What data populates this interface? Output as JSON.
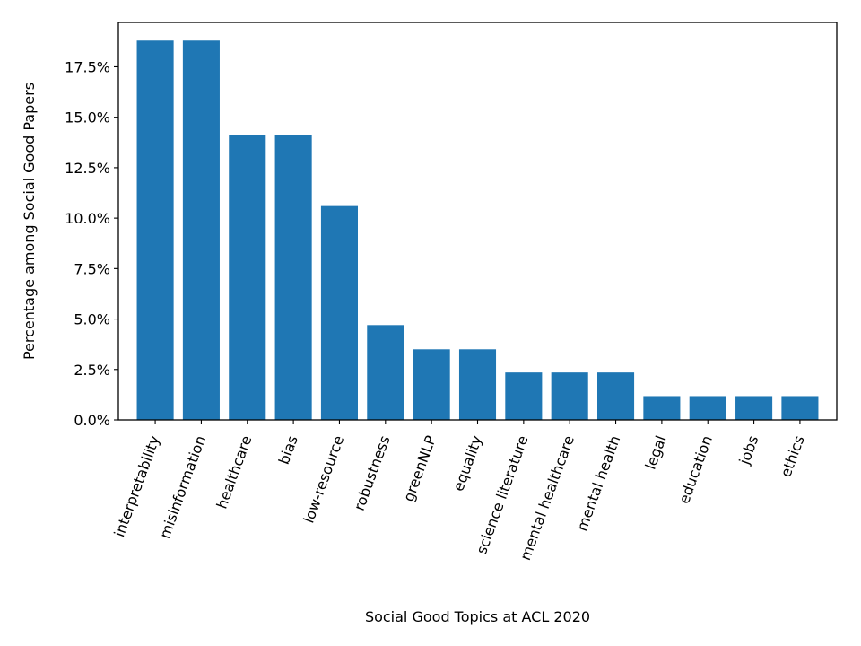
{
  "chart_data": {
    "type": "bar",
    "categories": [
      "interpretability",
      "misinformation",
      "healthcare",
      "bias",
      "low-resource",
      "robustness",
      "greenNLP",
      "equality",
      "science literature",
      "mental healthcare",
      "mental health",
      "legal",
      "education",
      "jobs",
      "ethics"
    ],
    "values": [
      18.8,
      18.8,
      14.1,
      14.1,
      10.6,
      4.7,
      3.5,
      3.5,
      2.35,
      2.35,
      2.35,
      1.18,
      1.18,
      1.18,
      1.18
    ],
    "title": "",
    "xlabel": "Social Good Topics at ACL 2020",
    "ylabel": "Percentage among Social Good Papers",
    "ylim": [
      0,
      19.7
    ],
    "yticks": [
      0.0,
      2.5,
      5.0,
      7.5,
      10.0,
      12.5,
      15.0,
      17.5
    ],
    "ytick_labels": [
      "0.0%",
      "2.5%",
      "5.0%",
      "7.5%",
      "10.0%",
      "12.5%",
      "15.0%",
      "17.5%"
    ],
    "grid": false,
    "bar_color": "#1f77b4"
  }
}
